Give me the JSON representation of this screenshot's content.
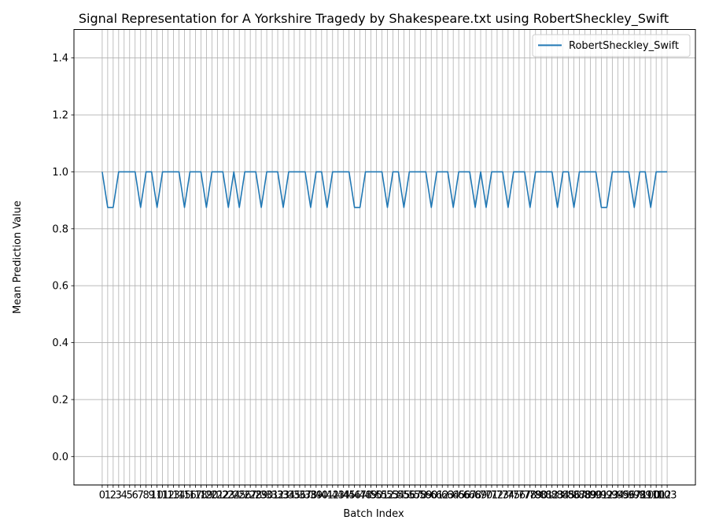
{
  "chart_data": {
    "type": "line",
    "title": "Signal Representation for A Yorkshire Tragedy by Shakespeare.txt using RobertSheckley_Swift",
    "xlabel": "Batch Index",
    "ylabel": "Mean Prediction Value",
    "xlim": [
      -5.15,
      108.15
    ],
    "ylim": [
      -0.1,
      1.5
    ],
    "yticks": [
      0.0,
      0.2,
      0.4,
      0.6,
      0.8,
      1.0,
      1.2,
      1.4
    ],
    "grid": true,
    "legend": "top-right",
    "series": [
      {
        "name": "RobertSheckley_Swift",
        "color": "#1f77b4",
        "values": [
          1.0,
          0.875,
          0.875,
          1.0,
          1.0,
          1.0,
          1.0,
          0.875,
          1.0,
          1.0,
          0.875,
          1.0,
          1.0,
          1.0,
          1.0,
          0.875,
          1.0,
          1.0,
          1.0,
          0.875,
          1.0,
          1.0,
          1.0,
          0.875,
          1.0,
          0.875,
          1.0,
          1.0,
          1.0,
          0.875,
          1.0,
          1.0,
          1.0,
          0.875,
          1.0,
          1.0,
          1.0,
          1.0,
          0.875,
          1.0,
          1.0,
          0.875,
          1.0,
          1.0,
          1.0,
          1.0,
          0.875,
          0.875,
          1.0,
          1.0,
          1.0,
          1.0,
          0.875,
          1.0,
          1.0,
          0.875,
          1.0,
          1.0,
          1.0,
          1.0,
          0.875,
          1.0,
          1.0,
          1.0,
          0.875,
          1.0,
          1.0,
          1.0,
          0.875,
          1.0,
          0.875,
          1.0,
          1.0,
          1.0,
          0.875,
          1.0,
          1.0,
          1.0,
          0.875,
          1.0,
          1.0,
          1.0,
          1.0,
          0.875,
          1.0,
          1.0,
          0.875,
          1.0,
          1.0,
          1.0,
          1.0,
          0.875,
          0.875,
          1.0,
          1.0,
          1.0,
          1.0,
          0.875,
          1.0,
          1.0,
          0.875,
          1.0,
          1.0,
          1.0
        ]
      }
    ]
  }
}
